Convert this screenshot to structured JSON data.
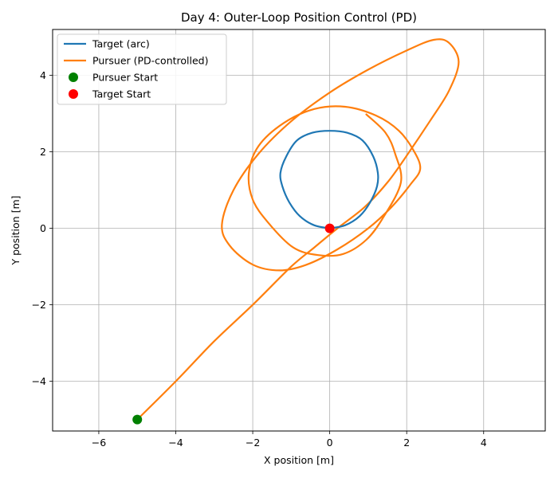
{
  "chart_data": {
    "type": "line",
    "title": "Day 4: Outer-Loop Position Control (PD)",
    "xlabel": "X position [m]",
    "ylabel": "Y position [m]",
    "xlim": [
      -7.2,
      5.6
    ],
    "ylim": [
      -5.3,
      5.2
    ],
    "xticks": [
      -6,
      -4,
      -2,
      0,
      2,
      4
    ],
    "yticks": [
      -4,
      -2,
      0,
      2,
      4
    ],
    "xtick_labels": [
      "−6",
      "−4",
      "−2",
      "0",
      "2",
      "4"
    ],
    "ytick_labels": [
      "−4",
      "−2",
      "0",
      "2",
      "4"
    ],
    "grid": true,
    "legend_position": "top-left",
    "series": [
      {
        "name": "Target (arc)",
        "kind": "line",
        "color": "#1f77b4",
        "points": [
          [
            0,
            0
          ],
          [
            0.4,
            0.08
          ],
          [
            0.78,
            0.32
          ],
          [
            1.05,
            0.68
          ],
          [
            1.23,
            1.1
          ],
          [
            1.25,
            1.45
          ],
          [
            1.13,
            1.88
          ],
          [
            0.85,
            2.3
          ],
          [
            0.45,
            2.5
          ],
          [
            0.0,
            2.55
          ],
          [
            -0.45,
            2.5
          ],
          [
            -0.85,
            2.3
          ],
          [
            -1.13,
            1.88
          ],
          [
            -1.28,
            1.45
          ],
          [
            -1.23,
            1.1
          ],
          [
            -1.05,
            0.68
          ],
          [
            -0.78,
            0.32
          ],
          [
            -0.4,
            0.08
          ],
          [
            0,
            0
          ]
        ]
      },
      {
        "name": "Pursuer (PD-controlled)",
        "kind": "line",
        "color": "#ff7f0e",
        "points": [
          [
            -5,
            -5
          ],
          [
            -4.0,
            -4.0
          ],
          [
            -3.0,
            -2.95
          ],
          [
            -2.0,
            -2.0
          ],
          [
            -1.0,
            -1.0
          ],
          [
            -0.4,
            -0.5
          ],
          [
            0.2,
            0.0
          ],
          [
            0.9,
            0.55
          ],
          [
            1.5,
            1.2
          ],
          [
            2.0,
            1.9
          ],
          [
            2.6,
            2.8
          ],
          [
            3.1,
            3.6
          ],
          [
            3.35,
            4.35
          ],
          [
            3.1,
            4.85
          ],
          [
            2.7,
            4.93
          ],
          [
            2.0,
            4.65
          ],
          [
            1.0,
            4.15
          ],
          [
            0.0,
            3.55
          ],
          [
            -1.0,
            2.8
          ],
          [
            -1.85,
            1.95
          ],
          [
            -2.5,
            1.0
          ],
          [
            -2.8,
            0.1
          ],
          [
            -2.6,
            -0.45
          ],
          [
            -2.0,
            -0.95
          ],
          [
            -1.3,
            -1.1
          ],
          [
            -0.6,
            -0.95
          ],
          [
            0.2,
            -0.55
          ],
          [
            1.0,
            0.0
          ],
          [
            1.6,
            0.55
          ],
          [
            2.1,
            1.15
          ],
          [
            2.35,
            1.55
          ],
          [
            2.2,
            2.0
          ],
          [
            1.8,
            2.55
          ],
          [
            1.2,
            2.95
          ],
          [
            0.4,
            3.18
          ],
          [
            -0.4,
            3.12
          ],
          [
            -1.2,
            2.75
          ],
          [
            -1.85,
            2.15
          ],
          [
            -2.1,
            1.45
          ],
          [
            -2.0,
            0.75
          ],
          [
            -1.6,
            0.15
          ],
          [
            -0.95,
            -0.5
          ],
          [
            -0.3,
            -0.7
          ],
          [
            0.35,
            -0.67
          ],
          [
            0.95,
            -0.3
          ],
          [
            1.4,
            0.3
          ],
          [
            1.85,
            1.2
          ],
          [
            1.7,
            1.95
          ],
          [
            1.45,
            2.5
          ],
          [
            0.95,
            2.98
          ]
        ]
      },
      {
        "name": "Pursuer Start",
        "kind": "marker",
        "color": "#008000",
        "x": -5,
        "y": -5
      },
      {
        "name": "Target Start",
        "kind": "marker",
        "color": "#ff0000",
        "x": 0,
        "y": 0
      }
    ]
  }
}
